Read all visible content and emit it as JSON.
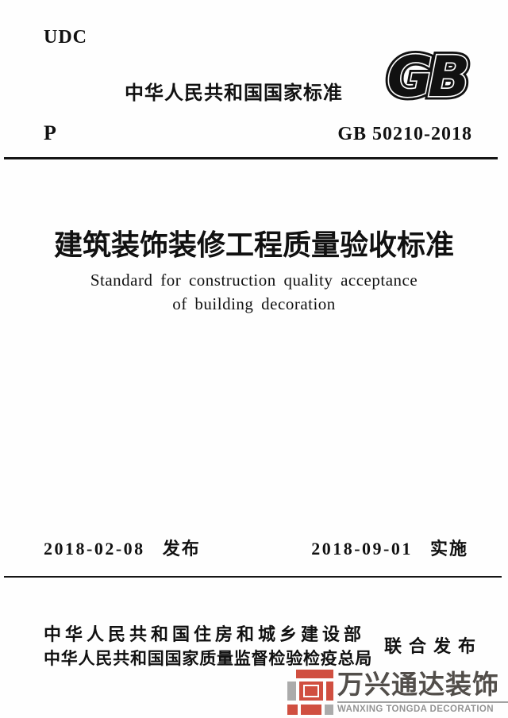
{
  "header": {
    "udc": "UDC",
    "national_standard_heading": "中华人民共和国国家标准",
    "gb_logo_text": "GB",
    "classification_code": "P",
    "standard_code": "GB 50210-2018"
  },
  "title": {
    "chinese": "建筑装饰装修工程质量验收标准",
    "english_line1": "Standard for construction quality acceptance",
    "english_line2": "of building decoration"
  },
  "dates": {
    "issue_date": "2018-02-08",
    "issue_label": "发布",
    "implementation_date": "2018-09-01",
    "implementation_label": "实施"
  },
  "publishers": {
    "line1": "中华人民共和国住房和城乡建设部",
    "line2": "中华人民共和国国家质量监督检验检疫总局",
    "joint_label": "联合发布"
  },
  "watermark": {
    "company_cn": "万兴通达装饰",
    "company_en": "WANXING TONGDA DECORATION",
    "logo_red": "#cd4232",
    "logo_gray": "#a5a5a5"
  }
}
